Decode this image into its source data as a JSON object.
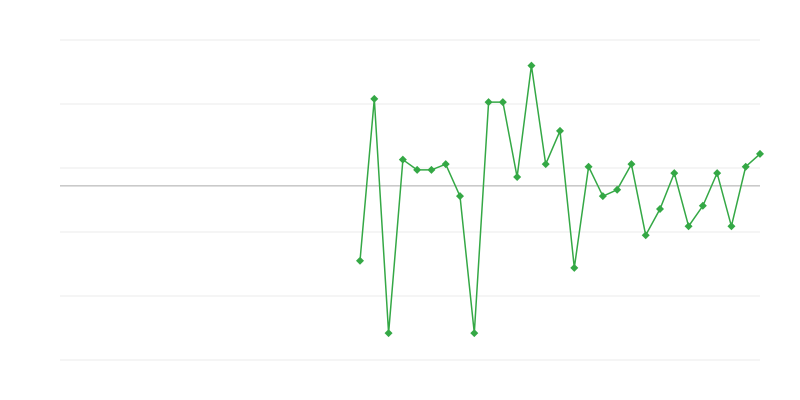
{
  "chart_data": {
    "type": "line",
    "title": "",
    "xlabel": "",
    "ylabel": "",
    "xlim": [
      0,
      49
    ],
    "ylim": [
      -2.72,
      2.28
    ],
    "grid": true,
    "gridlines": [
      2.28,
      1.28,
      0.28,
      -0.72,
      -1.72,
      -2.72
    ],
    "baseline": 0,
    "legend": "none",
    "colors": {
      "series": "#34a845",
      "grid": "#ebebeb",
      "baseline": "#aaaaaa"
    },
    "series": [
      {
        "x": [
          21,
          22,
          23,
          24,
          25,
          26,
          27,
          28,
          29,
          30,
          31,
          32,
          33,
          34,
          35,
          36,
          37,
          38,
          39,
          40,
          41,
          42,
          43,
          44,
          45,
          46,
          47,
          48,
          49
        ],
        "values": [
          -1.17,
          1.36,
          -2.3,
          0.41,
          0.25,
          0.25,
          0.34,
          -0.16,
          -2.3,
          1.31,
          1.31,
          0.14,
          1.88,
          0.34,
          0.86,
          -1.28,
          0.3,
          -0.16,
          -0.06,
          0.34,
          -0.77,
          -0.36,
          0.2,
          -0.63,
          -0.31,
          0.2,
          -0.63,
          0.3,
          0.5
        ]
      }
    ]
  }
}
